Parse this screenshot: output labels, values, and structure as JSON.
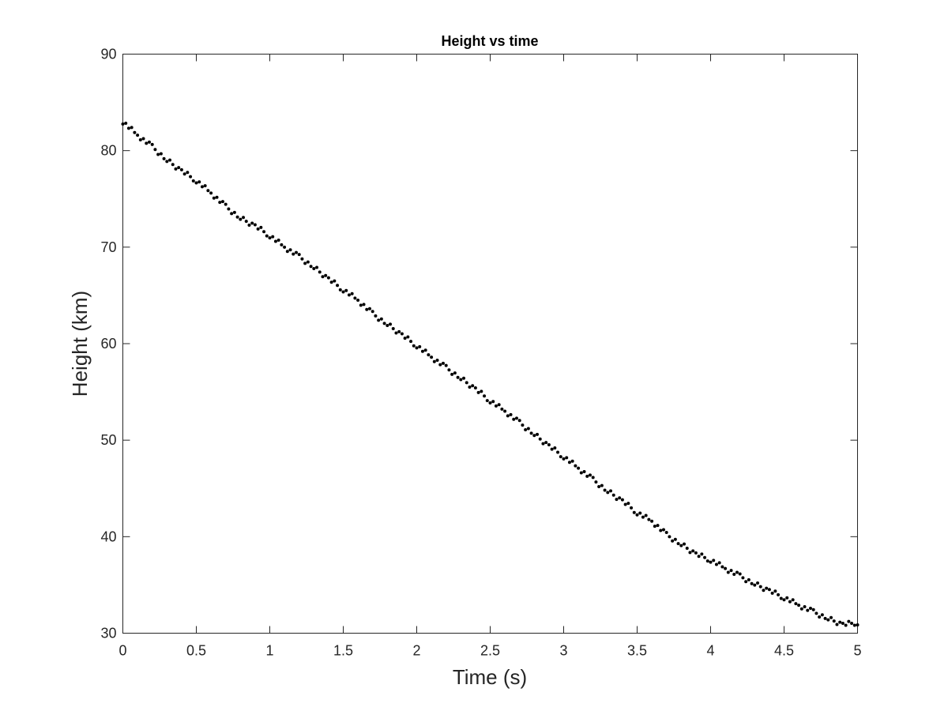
{
  "chart_data": {
    "type": "scatter",
    "title": "Height vs time",
    "xlabel": "Time (s)",
    "ylabel": "Height (km)",
    "xlim": [
      0,
      5
    ],
    "ylim": [
      30,
      90
    ],
    "xticks": [
      0,
      0.5,
      1,
      1.5,
      2,
      2.5,
      3,
      3.5,
      4,
      4.5,
      5
    ],
    "yticks": [
      30,
      40,
      50,
      60,
      70,
      80,
      90
    ],
    "grid": false,
    "legend": "none",
    "marker_color": "#000000",
    "axis_color": "#262626",
    "series": [
      {
        "x": [
          0.0,
          0.1,
          0.2,
          0.3,
          0.4,
          0.5,
          0.6,
          0.7,
          0.8,
          0.9,
          1.0,
          1.1,
          1.2,
          1.3,
          1.4,
          1.5,
          1.6,
          1.7,
          1.8,
          1.9,
          2.0,
          2.1,
          2.2,
          2.3,
          2.4,
          2.5,
          2.6,
          2.7,
          2.8,
          2.9,
          3.0,
          3.1,
          3.2,
          3.3,
          3.4,
          3.5,
          3.6,
          3.7,
          3.8,
          3.9,
          4.0,
          4.1,
          4.2,
          4.3,
          4.4,
          4.5,
          4.6,
          4.7,
          4.8,
          4.9,
          5.0
        ],
        "y": [
          83.0,
          81.6,
          80.4,
          79.0,
          77.9,
          76.9,
          75.6,
          74.2,
          73.0,
          72.2,
          71.2,
          70.0,
          69.0,
          67.9,
          66.7,
          65.6,
          64.5,
          63.1,
          62.0,
          60.9,
          59.8,
          58.6,
          57.5,
          56.4,
          55.3,
          54.1,
          53.0,
          51.8,
          50.6,
          49.4,
          48.3,
          47.1,
          45.9,
          44.7,
          43.7,
          42.5,
          41.6,
          40.2,
          39.2,
          38.2,
          37.6,
          36.7,
          35.9,
          35.1,
          34.4,
          33.7,
          32.9,
          32.2,
          31.5,
          30.9,
          31.1
        ]
      }
    ]
  }
}
